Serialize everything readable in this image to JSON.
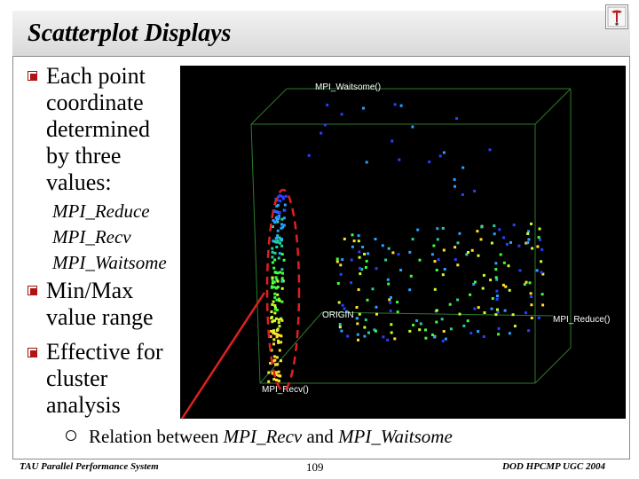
{
  "slide": {
    "title": "Scatterplot Displays",
    "bullets": [
      {
        "text": "Each point coordinate determined by three values:",
        "lines": [
          "Each point",
          "coordinate",
          "determined",
          "by three",
          "values:"
        ]
      },
      {
        "text": "Min/Max value range",
        "lines": [
          "Min/Max",
          "value range"
        ]
      },
      {
        "text": "Effective for cluster analysis",
        "lines": [
          "Effective for",
          "cluster",
          "analysis"
        ]
      }
    ],
    "metrics": [
      "MPI_Reduce",
      "MPI_Recv",
      "MPI_Waitsome"
    ],
    "sub_bullet": {
      "prefix": "Relation between ",
      "a": "MPI_Recv",
      "mid": " and ",
      "b": "MPI_Waitsome"
    }
  },
  "plot": {
    "axis_labels": {
      "z": "MPI_Waitsome()",
      "x": "MPI_Reduce()",
      "y": "MPI_Recv()",
      "origin": "ORIGIN"
    },
    "point_colors": [
      "#2a40ff",
      "#2aa0ff",
      "#25d0a0",
      "#3cff40",
      "#c8ff30",
      "#ffe030"
    ],
    "annotation_color": "#e02020"
  },
  "footer": {
    "left": "TAU Parallel Performance System",
    "page": "109",
    "right": "DOD HPCMP UGC 2004"
  }
}
